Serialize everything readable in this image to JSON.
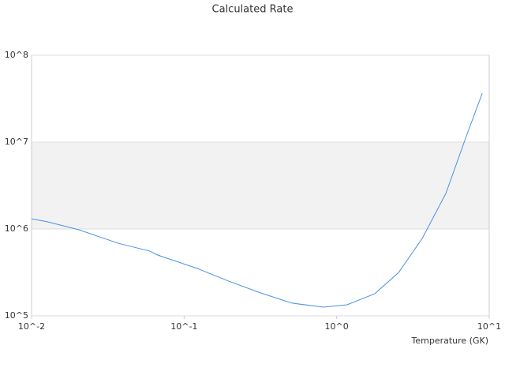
{
  "chart_data": {
    "type": "line",
    "title": "Calculated Rate",
    "x_label": "Temperature (GK)",
    "x": [
      0.01,
      0.0127,
      0.0204,
      0.037,
      0.0597,
      0.0673,
      0.122,
      0.196,
      0.316,
      0.509,
      0.82,
      1.17,
      1.78,
      2.55,
      3.64,
      5.2,
      7.0,
      9.0
    ],
    "series": [
      {
        "color": "#4a90e2",
        "values": [
          1310000,
          1210000,
          980000,
          685000,
          556000,
          500000,
          351000,
          251000,
          184000,
          140000,
          126000,
          134000,
          180000,
          316000,
          780000,
          2570000,
          11100000,
          36500000
        ]
      }
    ],
    "xscale": "log",
    "yscale": "log",
    "xlim": [
      0.01,
      10
    ],
    "ylim": [
      100000,
      100000000
    ],
    "xticks": [
      {
        "value": 0.01,
        "label": "10^-2"
      },
      {
        "value": 0.1,
        "label": "10^-1"
      },
      {
        "value": 1,
        "label": "10^0"
      },
      {
        "value": 10,
        "label": "10^1"
      }
    ],
    "yticks": [
      {
        "value": 100000,
        "label": "10^5"
      },
      {
        "value": 1000000,
        "label": "10^6"
      },
      {
        "value": 10000000,
        "label": "10^7"
      },
      {
        "value": 100000000,
        "label": "10^8"
      }
    ],
    "band_color": "#f2f2f2"
  }
}
